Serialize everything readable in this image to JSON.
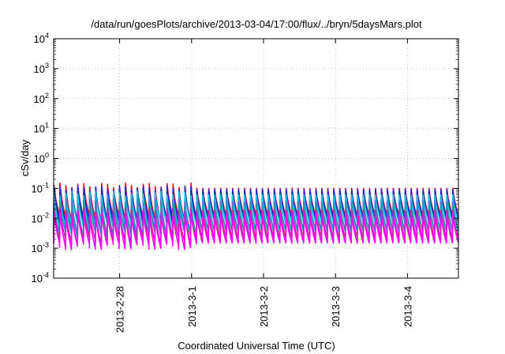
{
  "chart_data": {
    "type": "line",
    "title": "/data/run/goesPlots/archive/2013-03-04/17:00/flux/../bryn/5daysMars.plot",
    "xlabel": "Coordinated Universal Time (UTC)",
    "ylabel": "cSv/day",
    "yscale": "log",
    "ylim": [
      0.0001,
      10000
    ],
    "y_ticks": [
      {
        "exp": "-4",
        "value": 0.0001
      },
      {
        "exp": "-3",
        "value": 0.001
      },
      {
        "exp": "-2",
        "value": 0.01
      },
      {
        "exp": "-1",
        "value": 0.1
      },
      {
        "exp": "0",
        "value": 1
      },
      {
        "exp": "1",
        "value": 10
      },
      {
        "exp": "2",
        "value": 100
      },
      {
        "exp": "3",
        "value": 1000
      },
      {
        "exp": "4",
        "value": 10000
      }
    ],
    "y_tick_base": "10",
    "x_ticks": [
      "2013-2-28",
      "2013-3-1",
      "2013-3-2",
      "2013-3-3",
      "2013-3-4"
    ],
    "xlim": [
      "2013-02-27T02:00",
      "2013-03-04T17:00"
    ],
    "grid": true,
    "legend": "none",
    "pattern": "periodic sawtooth, ~12 cycles per day; each cycle jumps to a peak and decays to a minimum",
    "series": [
      {
        "color": "#e01010",
        "peak_early": 0.15,
        "peak_late": 0.1,
        "min": 0.012
      },
      {
        "color": "#2020ff",
        "peak_early": 0.12,
        "peak_late": 0.09,
        "min": 0.01
      },
      {
        "color": "#1a30a0",
        "peak_early": 0.1,
        "peak_late": 0.075,
        "min": 0.008
      },
      {
        "color": "#00c8e0",
        "peak_early": 0.08,
        "peak_late": 0.06,
        "min": 0.007
      },
      {
        "color": "#6a6ad0",
        "peak_early": 0.045,
        "peak_late": 0.035,
        "min": 0.004
      },
      {
        "color": "#20a0b0",
        "peak_early": 0.035,
        "peak_late": 0.028,
        "min": 0.0035
      },
      {
        "color": "#d020a0",
        "peak_early": 0.022,
        "peak_late": 0.018,
        "min": 0.0022
      },
      {
        "color": "#ff00ff",
        "peak_early": 0.018,
        "peak_late": 0.014,
        "min": 0.0015
      }
    ]
  }
}
